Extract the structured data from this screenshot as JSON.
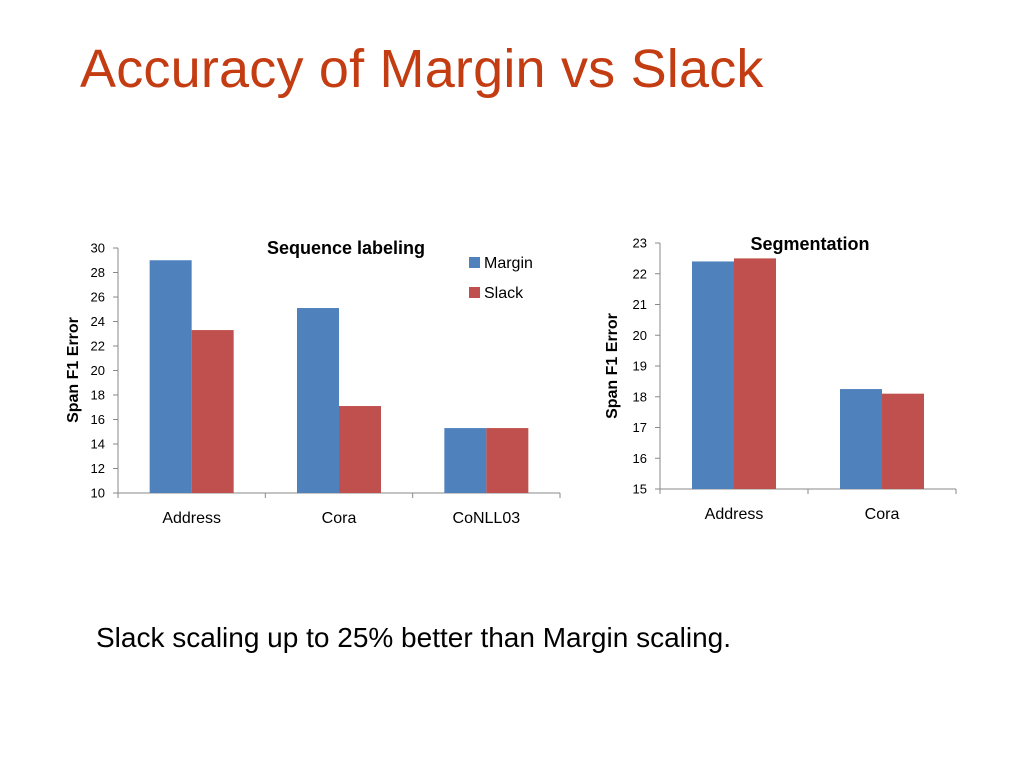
{
  "slide": {
    "title": "Accuracy of Margin vs Slack",
    "caption": "Slack scaling up to 25% better than Margin scaling."
  },
  "colors": {
    "title": "#C33C12",
    "margin": "#4F81BD",
    "slack": "#C0504D",
    "axis": "#888888"
  },
  "chart_data": [
    {
      "type": "bar",
      "title": "Sequence labeling",
      "ylabel": "Span F1 Error",
      "xlabel": "",
      "categories": [
        "Address",
        "Cora",
        "CoNLL03"
      ],
      "series": [
        {
          "name": "Margin",
          "values": [
            29,
            25.1,
            15.3
          ]
        },
        {
          "name": "Slack",
          "values": [
            23.3,
            17.1,
            15.3
          ]
        }
      ],
      "ylim": [
        10,
        30
      ],
      "yticks": [
        "10",
        "12",
        "14",
        "16",
        "18",
        "20",
        "22",
        "24",
        "26",
        "28",
        "30"
      ],
      "grid": false,
      "legend": "top-right"
    },
    {
      "type": "bar",
      "title": "Segmentation",
      "ylabel": "Span F1 Error",
      "xlabel": "",
      "categories": [
        "Address",
        "Cora"
      ],
      "series": [
        {
          "values": [
            22.4,
            18.25
          ]
        },
        {
          "values": [
            22.5,
            18.1
          ]
        }
      ],
      "ylim": [
        15,
        23
      ],
      "yticks": [
        "15",
        "16",
        "17",
        "18",
        "19",
        "20",
        "21",
        "22",
        "23"
      ],
      "grid": false,
      "legend": "none"
    }
  ]
}
